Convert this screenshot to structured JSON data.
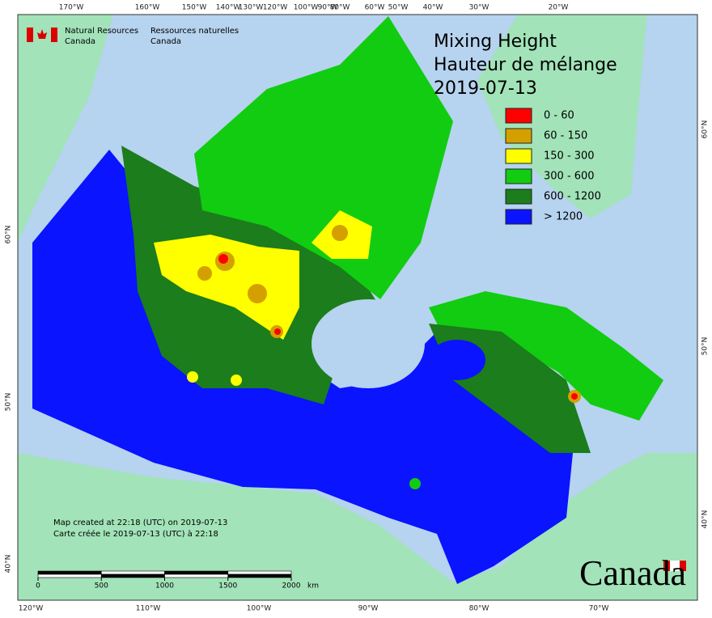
{
  "header": {
    "agency_en": [
      "Natural Resources",
      "Canada"
    ],
    "agency_fr": [
      "Ressources naturelles",
      "Canada"
    ]
  },
  "title": [
    "Mixing Height",
    "Hauteur de mélange",
    "2019-07-13"
  ],
  "legend": [
    {
      "label": "0 - 60",
      "color": "#ff0000"
    },
    {
      "label": "60 - 150",
      "color": "#d4a000"
    },
    {
      "label": "150 - 300",
      "color": "#ffff00"
    },
    {
      "label": "300 - 600",
      "color": "#11cc11"
    },
    {
      "label": "600 - 1200",
      "color": "#1b7d1b"
    },
    {
      "label": "> 1200",
      "color": "#0a14ff"
    }
  ],
  "graticule": {
    "top": [
      "170°W",
      "160°W",
      "150°W",
      "140°W",
      "130°W",
      "120°W",
      "100°W",
      "90°W",
      "80°W",
      "60°W",
      "50°W",
      "40°W",
      "30°W",
      "20°W"
    ],
    "bottom": [
      "120°W",
      "110°W",
      "100°W",
      "90°W",
      "80°W",
      "70°W"
    ],
    "left": [
      "60°N",
      "50°N",
      "40°N"
    ],
    "right": [
      "60°N",
      "50°N",
      "40°N"
    ]
  },
  "notes": [
    "Map created at 22:18 (UTC) on 2019-07-13",
    "Carte créée le 2019-07-13 (UTC) à 22:18"
  ],
  "scale": {
    "ticks": [
      0,
      500,
      1000,
      1500,
      2000
    ],
    "unit": "km"
  },
  "wordmark": "Canada"
}
